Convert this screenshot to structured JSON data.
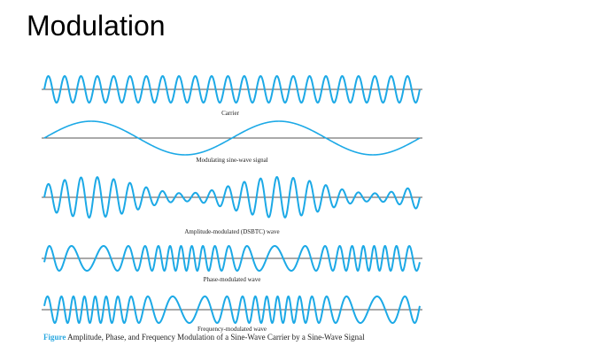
{
  "slide": {
    "title": "Modulation"
  },
  "figure": {
    "wave_color": "#1ca9e6",
    "axis_color": "#555555",
    "caption_accent_color": "#2aa8e0",
    "caption_lead": "Figure",
    "caption_text": "Amplitude, Phase, and Frequency Modulation of a Sine-Wave Carrier by a Sine-Wave Signal",
    "waves": [
      {
        "id": "carrier",
        "label": "Carrier"
      },
      {
        "id": "modulating",
        "label": "Modulating sine-wave signal"
      },
      {
        "id": "am",
        "label": "Amplitude-modulated (DSBTC) wave"
      },
      {
        "id": "pm",
        "label": "Phase-modulated wave"
      },
      {
        "id": "fm",
        "label": "Frequency-modulated wave"
      }
    ]
  }
}
